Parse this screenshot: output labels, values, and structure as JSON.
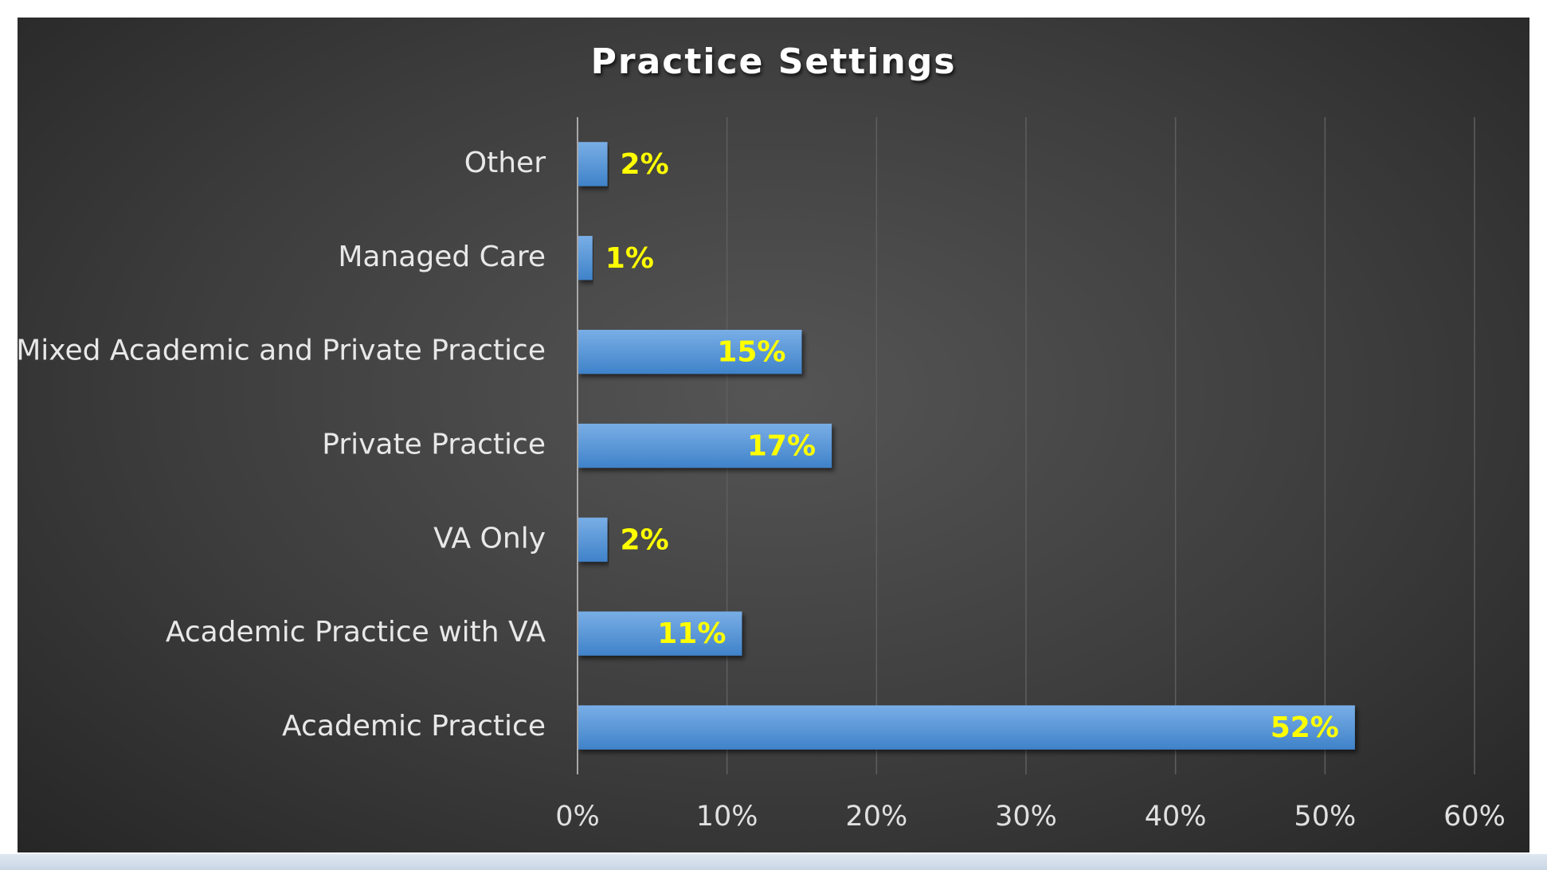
{
  "chart_data": {
    "type": "bar",
    "orientation": "horizontal",
    "title": "Practice Settings",
    "categories": [
      "Academic Practice",
      "Academic Practice with VA",
      "VA Only",
      "Private Practice",
      "Mixed Academic and Private Practice",
      "Managed Care",
      "Other"
    ],
    "values": [
      52,
      11,
      2,
      17,
      15,
      1,
      2
    ],
    "data_labels": [
      "52%",
      "11%",
      "2%",
      "17%",
      "15%",
      "1%",
      "2%"
    ],
    "xlim": [
      0,
      60
    ],
    "x_ticks": [
      "0%",
      "10%",
      "20%",
      "30%",
      "40%",
      "50%",
      "60%"
    ],
    "xlabel": "",
    "ylabel": "",
    "grid": "vertical",
    "legend": "none",
    "colors": {
      "bar_top": "#79aee6",
      "bar_bottom": "#3f82c9",
      "data_label": "#ffff00",
      "background": "#3d3d3d",
      "gridline": "#5e5e5e"
    }
  }
}
